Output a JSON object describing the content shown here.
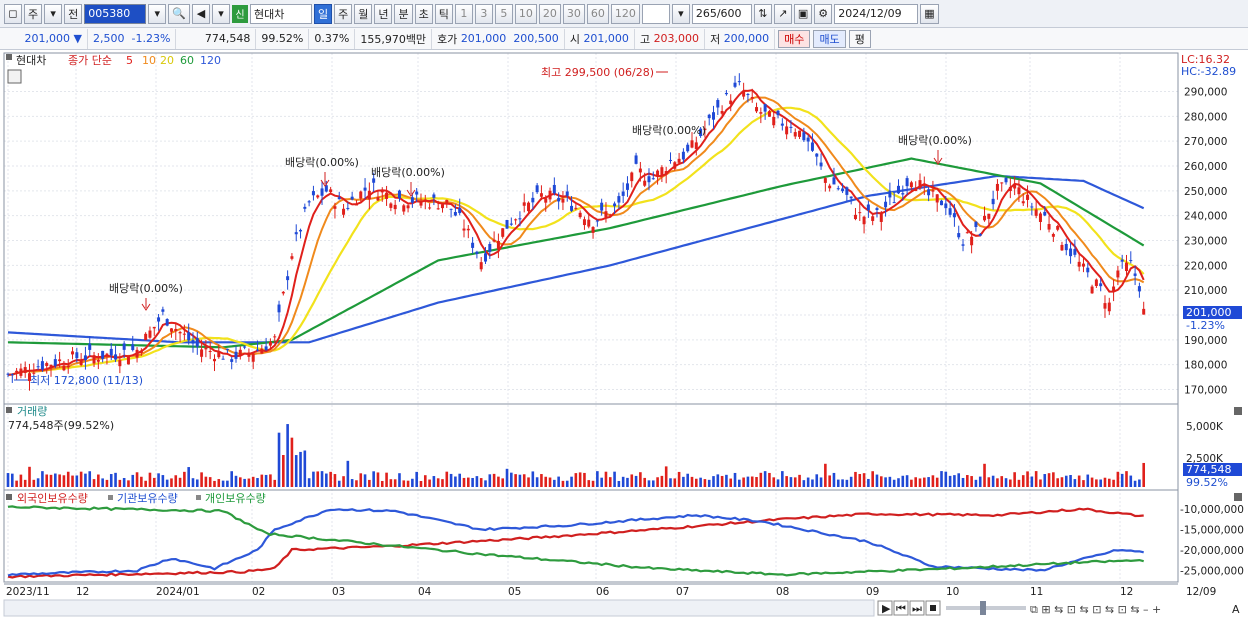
{
  "toolbar": {
    "tab_main": "주",
    "tab_all": "전",
    "stock_code": "005380",
    "sin_badge": "신",
    "stock_name": "현대차",
    "periods": [
      "일",
      "주",
      "월",
      "년",
      "분",
      "초",
      "틱"
    ],
    "minutes": [
      "1",
      "3",
      "5",
      "10",
      "20",
      "30",
      "60",
      "120"
    ],
    "count": "265",
    "count_total": "/600",
    "date": "2024/12/09"
  },
  "quote": {
    "price": "201,000",
    "change": "2,500",
    "change_pct": "-1.23%",
    "volume": "774,548",
    "volume_ratio": "99.52%",
    "turnover": "0.37%",
    "amount": "155,970백만",
    "hoga_label": "호가",
    "hoga_bid": "201,000",
    "hoga_ask": "200,500",
    "open_label": "시",
    "open": "201,000",
    "high_label": "고",
    "high": "203,000",
    "low_label": "저",
    "low": "200,000",
    "buy_label": "매수",
    "sell_label": "매도",
    "eval_label": "평"
  },
  "price_panel": {
    "title": "현대차",
    "ma_label": "종가 단순",
    "ma_periods": [
      "5",
      "10",
      "20",
      "60",
      "120"
    ],
    "lc": "LC:16.32",
    "hc": "HC:-32.89",
    "high_note": "최고 299,500 (06/28)",
    "low_note": "최저 172,800 (11/13)",
    "dividend_label": "배당락(0.00%)",
    "current_price": "201,000",
    "current_pct": "-1.23%",
    "y_ticks": [
      "290,000",
      "280,000",
      "270,000",
      "260,000",
      "250,000",
      "240,000",
      "230,000",
      "220,000",
      "210,000",
      "190,000",
      "180,000",
      "170,000"
    ]
  },
  "volume_panel": {
    "title": "거래량",
    "value": "774,548주(99.52%)",
    "y_ticks": [
      "5,000K",
      "2,500K"
    ],
    "current": "774,548",
    "current_pct": "99.52%"
  },
  "holding_panel": {
    "legend": [
      "외국인보유수량",
      "기관보유수량",
      "개인보유수량"
    ],
    "y_ticks": [
      "-10,000,000",
      "-15,000,000",
      "-20,000,000",
      "-25,000,000"
    ]
  },
  "x_axis": [
    "2023/11",
    "12",
    "2024/01",
    "02",
    "03",
    "04",
    "05",
    "06",
    "07",
    "08",
    "09",
    "10",
    "11",
    "12",
    "12/09"
  ],
  "colors": {
    "up": "#e0201b",
    "down": "#1f49d6",
    "ma5": "#e0201b",
    "ma10": "#f08a1c",
    "ma20": "#f2e21c",
    "ma60": "#1e9a3a",
    "ma120": "#2e58d9"
  }
}
